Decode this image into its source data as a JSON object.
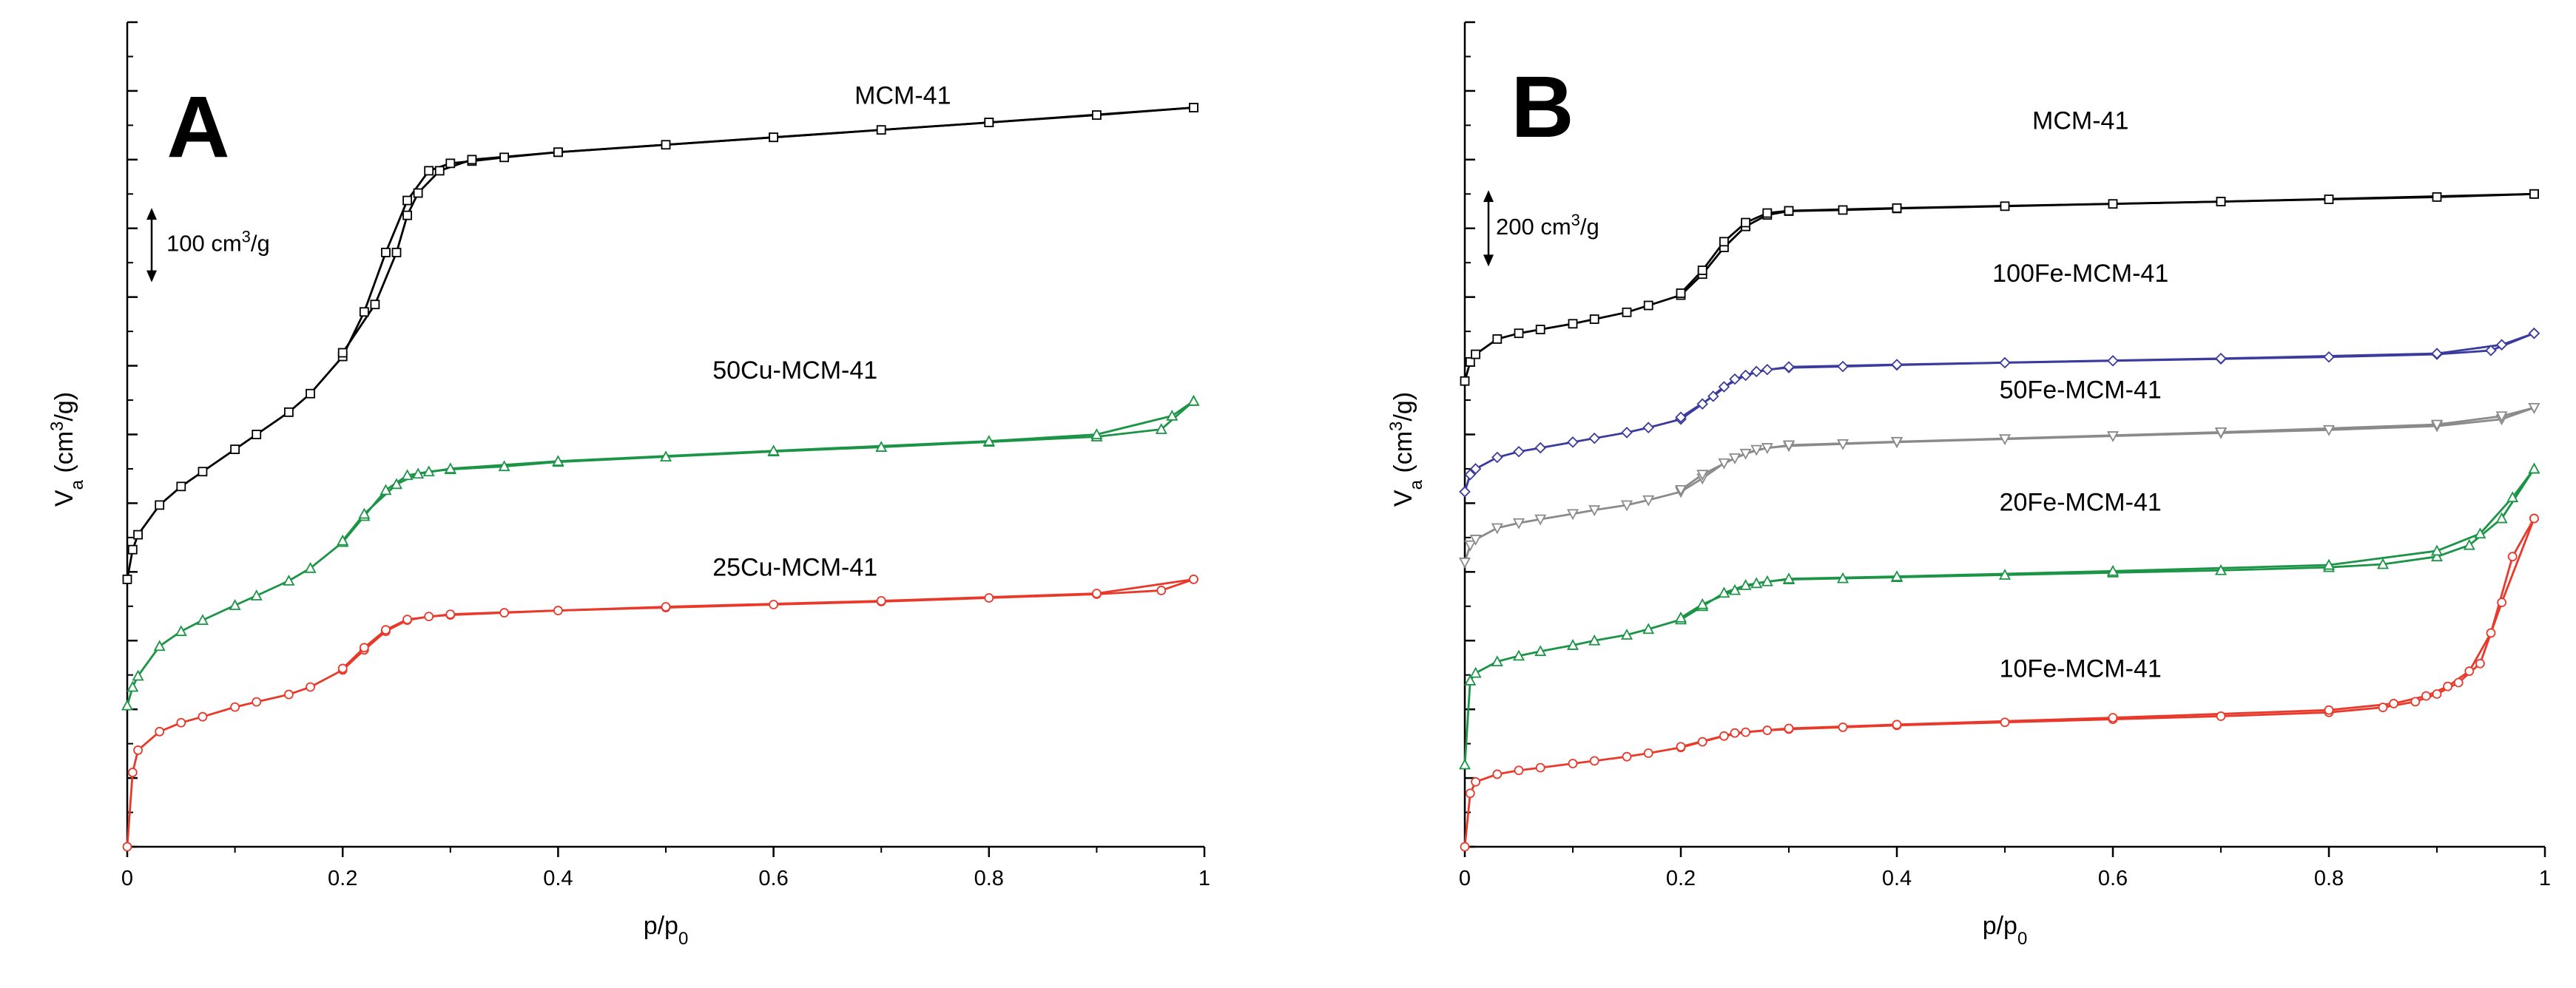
{
  "chart_data": [
    {
      "type": "line",
      "panel": "A",
      "xlabel": "p/p0",
      "xlabel_main": "p/p",
      "xlabel_sub": "0",
      "ylabel_main": "V",
      "ylabel_sub": "a",
      "ylabel_rest": " (cm",
      "ylabel_sup": "3",
      "ylabel_tail": "/g)",
      "xlim": [
        0,
        1
      ],
      "ylim": [
        0,
        1110
      ],
      "x_ticks": [
        "0",
        "0.2",
        "0.4",
        "0.6",
        "0.8",
        "1"
      ],
      "y_tick_labels": "none",
      "grid": false,
      "scale_bar": {
        "label_main": "100 cm",
        "label_sup": "3",
        "label_tail": "/g",
        "value": 100,
        "y_from": 760,
        "y_to": 860
      },
      "series": [
        {
          "name": "MCM-41",
          "color": "#000000",
          "marker": "square",
          "label_x": 0.72,
          "label_y": 1000,
          "x": [
            0,
            0.005,
            0.01,
            0.03,
            0.05,
            0.07,
            0.1,
            0.12,
            0.15,
            0.17,
            0.2,
            0.22,
            0.24,
            0.26,
            0.28,
            0.3,
            0.32,
            0.35,
            0.4,
            0.5,
            0.6,
            0.7,
            0.8,
            0.9,
            0.99
          ],
          "y": [
            360,
            400,
            420,
            460,
            485,
            505,
            535,
            555,
            585,
            610,
            660,
            720,
            800,
            870,
            910,
            920,
            923,
            928,
            935,
            945,
            955,
            965,
            975,
            985,
            995
          ],
          "x_desorption": [
            0.99,
            0.8,
            0.6,
            0.4,
            0.32,
            0.29,
            0.27,
            0.26,
            0.25,
            0.23,
            0.2
          ],
          "y_desorption": [
            995,
            975,
            955,
            935,
            925,
            910,
            880,
            850,
            800,
            730,
            665
          ]
        },
        {
          "name": "50Cu-MCM-41",
          "color": "#1b9446",
          "marker": "triangle",
          "label_x": 0.62,
          "label_y": 630,
          "x": [
            0,
            0.005,
            0.01,
            0.03,
            0.05,
            0.07,
            0.1,
            0.12,
            0.15,
            0.17,
            0.2,
            0.22,
            0.24,
            0.26,
            0.28,
            0.3,
            0.35,
            0.4,
            0.5,
            0.6,
            0.7,
            0.8,
            0.9,
            0.96,
            0.99
          ],
          "y": [
            190,
            215,
            230,
            270,
            290,
            305,
            325,
            338,
            358,
            375,
            410,
            445,
            480,
            500,
            505,
            508,
            512,
            518,
            525,
            532,
            538,
            545,
            552,
            562,
            600
          ],
          "x_desorption": [
            0.99,
            0.97,
            0.9,
            0.8,
            0.6,
            0.4,
            0.3,
            0.27,
            0.25,
            0.22,
            0.2
          ],
          "y_desorption": [
            600,
            580,
            555,
            546,
            533,
            519,
            509,
            502,
            488,
            448,
            412
          ]
        },
        {
          "name": "25Cu-MCM-41",
          "color": "#e8392b",
          "marker": "circle",
          "label_x": 0.62,
          "label_y": 365,
          "x": [
            0,
            0.005,
            0.01,
            0.03,
            0.05,
            0.07,
            0.1,
            0.12,
            0.15,
            0.17,
            0.2,
            0.22,
            0.24,
            0.26,
            0.28,
            0.3,
            0.35,
            0.4,
            0.5,
            0.6,
            0.7,
            0.8,
            0.9,
            0.96,
            0.99
          ],
          "y": [
            0,
            100,
            130,
            155,
            167,
            175,
            188,
            195,
            205,
            215,
            238,
            265,
            290,
            305,
            310,
            312,
            315,
            318,
            322,
            326,
            330,
            335,
            340,
            345,
            360
          ],
          "x_desorption": [
            0.99,
            0.9,
            0.7,
            0.5,
            0.3,
            0.26,
            0.24,
            0.22,
            0.2
          ],
          "y_desorption": [
            360,
            341,
            331,
            323,
            313,
            306,
            292,
            268,
            240
          ]
        }
      ]
    },
    {
      "type": "line",
      "panel": "B",
      "xlabel": "p/p0",
      "xlabel_main": "p/p",
      "xlabel_sub": "0",
      "ylabel_main": "V",
      "ylabel_sub": "a",
      "ylabel_rest": " (cm",
      "ylabel_sup": "3",
      "ylabel_tail": "/g)",
      "xlim": [
        0,
        1
      ],
      "ylim": [
        0,
        2160
      ],
      "x_ticks": [
        "0",
        "0.2",
        "0.4",
        "0.6",
        "0.8",
        "1"
      ],
      "y_tick_labels": "none",
      "grid": false,
      "scale_bar": {
        "label_main": "200 cm",
        "label_sup": "3",
        "label_tail": "/g",
        "value": 200,
        "y_from": 1520,
        "y_to": 1720
      },
      "series": [
        {
          "name": "MCM-41",
          "color": "#000000",
          "marker": "square",
          "label_x": 0.57,
          "label_y": 1880,
          "x": [
            0,
            0.005,
            0.01,
            0.03,
            0.05,
            0.07,
            0.1,
            0.12,
            0.15,
            0.17,
            0.2,
            0.22,
            0.24,
            0.26,
            0.28,
            0.3,
            0.35,
            0.4,
            0.5,
            0.6,
            0.7,
            0.8,
            0.9,
            0.99
          ],
          "y": [
            1220,
            1270,
            1290,
            1330,
            1345,
            1355,
            1370,
            1382,
            1400,
            1418,
            1445,
            1500,
            1570,
            1625,
            1655,
            1665,
            1668,
            1672,
            1678,
            1684,
            1690,
            1696,
            1702,
            1710
          ],
          "x_desorption": [
            0.99,
            0.7,
            0.4,
            0.3,
            0.28,
            0.26,
            0.24,
            0.22,
            0.2
          ],
          "y_desorption": [
            1710,
            1690,
            1673,
            1666,
            1660,
            1635,
            1585,
            1510,
            1450
          ]
        },
        {
          "name": "100Fe-MCM-41",
          "color": "#3b3b9e",
          "marker": "diamond",
          "label_x": 0.57,
          "label_y": 1480,
          "x": [
            0,
            0.005,
            0.01,
            0.03,
            0.05,
            0.07,
            0.1,
            0.12,
            0.15,
            0.17,
            0.2,
            0.22,
            0.24,
            0.26,
            0.28,
            0.3,
            0.35,
            0.4,
            0.5,
            0.6,
            0.7,
            0.8,
            0.9,
            0.95,
            0.99
          ],
          "y": [
            930,
            975,
            990,
            1020,
            1035,
            1045,
            1060,
            1070,
            1085,
            1098,
            1120,
            1160,
            1205,
            1235,
            1250,
            1255,
            1258,
            1262,
            1268,
            1273,
            1278,
            1283,
            1290,
            1300,
            1345
          ],
          "x_desorption": [
            0.99,
            0.96,
            0.9,
            0.7,
            0.4,
            0.3,
            0.27,
            0.25,
            0.23,
            0.2
          ],
          "y_desorption": [
            1345,
            1315,
            1292,
            1279,
            1263,
            1257,
            1245,
            1225,
            1180,
            1125
          ]
        },
        {
          "name": "50Fe-MCM-41",
          "color": "#8a8a8a",
          "marker": "triangle-down",
          "label_x": 0.57,
          "label_y": 1175,
          "x": [
            0,
            0.005,
            0.01,
            0.03,
            0.05,
            0.07,
            0.1,
            0.12,
            0.15,
            0.17,
            0.2,
            0.22,
            0.24,
            0.26,
            0.28,
            0.3,
            0.35,
            0.4,
            0.5,
            0.6,
            0.7,
            0.8,
            0.9,
            0.96,
            0.99
          ],
          "y": [
            745,
            790,
            805,
            835,
            848,
            858,
            872,
            882,
            895,
            908,
            930,
            965,
            1005,
            1030,
            1045,
            1050,
            1055,
            1060,
            1068,
            1076,
            1084,
            1092,
            1102,
            1120,
            1150
          ],
          "x_desorption": [
            0.99,
            0.96,
            0.9,
            0.7,
            0.4,
            0.3,
            0.27,
            0.25,
            0.22,
            0.2
          ],
          "y_desorption": [
            1150,
            1128,
            1106,
            1086,
            1061,
            1052,
            1040,
            1018,
            975,
            935
          ]
        },
        {
          "name": "20Fe-MCM-41",
          "color": "#1b9446",
          "marker": "triangle",
          "label_x": 0.57,
          "label_y": 880,
          "x": [
            0,
            0.005,
            0.01,
            0.03,
            0.05,
            0.07,
            0.1,
            0.12,
            0.15,
            0.17,
            0.2,
            0.22,
            0.24,
            0.26,
            0.28,
            0.3,
            0.35,
            0.4,
            0.5,
            0.6,
            0.7,
            0.8,
            0.85,
            0.9,
            0.93,
            0.96,
            0.99
          ],
          "y": [
            215,
            435,
            455,
            485,
            500,
            512,
            528,
            540,
            555,
            570,
            595,
            630,
            665,
            685,
            695,
            700,
            703,
            706,
            712,
            718,
            724,
            732,
            740,
            760,
            790,
            860,
            990
          ],
          "x_desorption": [
            0.99,
            0.97,
            0.94,
            0.9,
            0.8,
            0.6,
            0.4,
            0.3,
            0.27,
            0.25,
            0.22,
            0.2
          ],
          "y_desorption": [
            990,
            915,
            820,
            775,
            738,
            722,
            708,
            702,
            690,
            672,
            635,
            600
          ]
        },
        {
          "name": "10Fe-MCM-41",
          "color": "#e8392b",
          "marker": "circle",
          "label_x": 0.57,
          "label_y": 445,
          "x": [
            0,
            0.005,
            0.01,
            0.03,
            0.05,
            0.07,
            0.1,
            0.12,
            0.15,
            0.17,
            0.2,
            0.22,
            0.24,
            0.26,
            0.28,
            0.3,
            0.35,
            0.4,
            0.5,
            0.6,
            0.7,
            0.8,
            0.85,
            0.88,
            0.9,
            0.92,
            0.94,
            0.96,
            0.99
          ],
          "y": [
            0,
            140,
            170,
            190,
            200,
            207,
            218,
            225,
            236,
            245,
            260,
            275,
            290,
            300,
            305,
            308,
            313,
            318,
            326,
            334,
            342,
            352,
            365,
            380,
            400,
            430,
            480,
            640,
            860
          ],
          "x_desorption": [
            0.99,
            0.97,
            0.95,
            0.93,
            0.91,
            0.89,
            0.86,
            0.8,
            0.6,
            0.4,
            0.3,
            0.25,
            0.2
          ],
          "y_desorption": [
            860,
            760,
            560,
            460,
            420,
            395,
            375,
            358,
            338,
            320,
            310,
            298,
            262
          ]
        }
      ]
    }
  ]
}
